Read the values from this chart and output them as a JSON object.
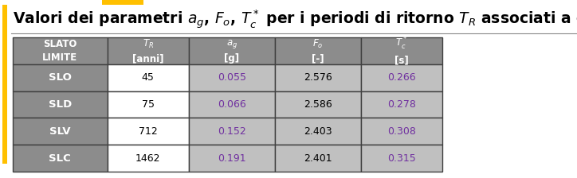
{
  "title": "Valori dei parametri $a_g$, $F_o$, $T_c^*$ per i periodi di ritorno $T_R$ associati a ciascuno",
  "title_fontsize": 13.5,
  "header_bg": "#8c8c8c",
  "header_fg": "#ffffff",
  "data_grey_bg": "#c0c0c0",
  "data_white_bg": "#ffffff",
  "slato_bg": "#8c8c8c",
  "slato_fg": "#ffffff",
  "data_fg_purple": "#7030a0",
  "data_fg_black": "#000000",
  "border_color": "#3f3f3f",
  "bg_color": "#ffffff",
  "title_color": "#000000",
  "left_bar_color": "#ffc000",
  "header_row1": [
    "SLATO\nLIMITE",
    "$T_R$\n[anni]",
    "$a_g$\n[g]",
    "$F_o$\n[-]",
    "$T_c^*$\n[s]"
  ],
  "rows": [
    [
      "SLO",
      "45",
      "0.055",
      "2.576",
      "0.266"
    ],
    [
      "SLD",
      "75",
      "0.066",
      "2.586",
      "0.278"
    ],
    [
      "SLV",
      "712",
      "0.152",
      "2.403",
      "0.308"
    ],
    [
      "SLC",
      "1462",
      "0.191",
      "2.401",
      "0.315"
    ]
  ],
  "col_colors": [
    [
      "slato",
      "white",
      "grey",
      "grey",
      "grey"
    ],
    [
      "slato",
      "white",
      "grey",
      "grey",
      "grey"
    ],
    [
      "slato",
      "white",
      "grey",
      "grey",
      "grey"
    ],
    [
      "slato",
      "white",
      "grey",
      "grey",
      "grey"
    ]
  ],
  "text_colors": [
    [
      "white",
      "black",
      "purple",
      "black",
      "purple"
    ],
    [
      "white",
      "black",
      "purple",
      "black",
      "purple"
    ],
    [
      "white",
      "black",
      "purple",
      "black",
      "purple"
    ],
    [
      "white",
      "black",
      "purple",
      "black",
      "purple"
    ]
  ]
}
